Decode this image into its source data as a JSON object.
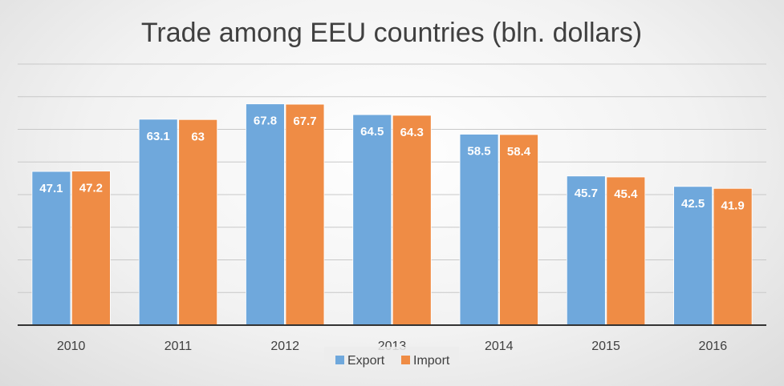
{
  "chart_data": {
    "type": "bar",
    "title": "Trade among EEU countries (bln. dollars)",
    "categories": [
      "2010",
      "2011",
      "2012",
      "2013",
      "2014",
      "2015",
      "2016"
    ],
    "series": [
      {
        "name": "Export",
        "color": "#6fa8dc",
        "values": [
          47.1,
          63.1,
          67.8,
          64.5,
          58.5,
          45.7,
          42.5
        ]
      },
      {
        "name": "Import",
        "color": "#ef8c45",
        "values": [
          47.2,
          63,
          67.7,
          64.3,
          58.4,
          45.4,
          41.9
        ]
      }
    ],
    "xlabel": "",
    "ylabel": "",
    "ylim": [
      0,
      80
    ],
    "grid": true,
    "legend": "bottom-center",
    "gridline_color": "#c8c8c8",
    "axis_color": "#333333"
  }
}
